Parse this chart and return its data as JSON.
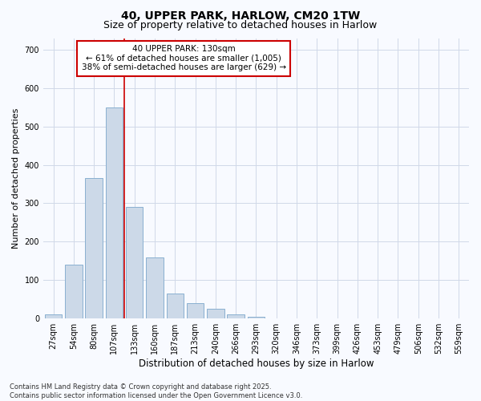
{
  "title_line1": "40, UPPER PARK, HARLOW, CM20 1TW",
  "title_line2": "Size of property relative to detached houses in Harlow",
  "xlabel": "Distribution of detached houses by size in Harlow",
  "ylabel": "Number of detached properties",
  "categories": [
    "27sqm",
    "54sqm",
    "80sqm",
    "107sqm",
    "133sqm",
    "160sqm",
    "187sqm",
    "213sqm",
    "240sqm",
    "266sqm",
    "293sqm",
    "320sqm",
    "346sqm",
    "373sqm",
    "399sqm",
    "426sqm",
    "453sqm",
    "479sqm",
    "506sqm",
    "532sqm",
    "559sqm"
  ],
  "values": [
    10,
    140,
    365,
    550,
    290,
    160,
    65,
    40,
    25,
    10,
    5,
    0,
    0,
    0,
    0,
    0,
    0,
    0,
    0,
    0,
    0
  ],
  "bar_color": "#ccd9e8",
  "bar_edge_color": "#8ab0d0",
  "grid_color": "#d0d8e8",
  "plot_bg_color": "#f8faff",
  "fig_bg_color": "#f8faff",
  "vline_color": "#cc0000",
  "vline_x": 3.5,
  "annotation_text": "40 UPPER PARK: 130sqm\n← 61% of detached houses are smaller (1,005)\n38% of semi-detached houses are larger (629) →",
  "annotation_box_facecolor": "#ffffff",
  "annotation_box_edgecolor": "#cc0000",
  "ylim": [
    0,
    730
  ],
  "yticks": [
    0,
    100,
    200,
    300,
    400,
    500,
    600,
    700
  ],
  "footnote": "Contains HM Land Registry data © Crown copyright and database right 2025.\nContains public sector information licensed under the Open Government Licence v3.0.",
  "title_fontsize": 10,
  "subtitle_fontsize": 9,
  "tick_fontsize": 7,
  "xlabel_fontsize": 8.5,
  "ylabel_fontsize": 8,
  "ann_fontsize": 7.5,
  "footnote_fontsize": 6
}
